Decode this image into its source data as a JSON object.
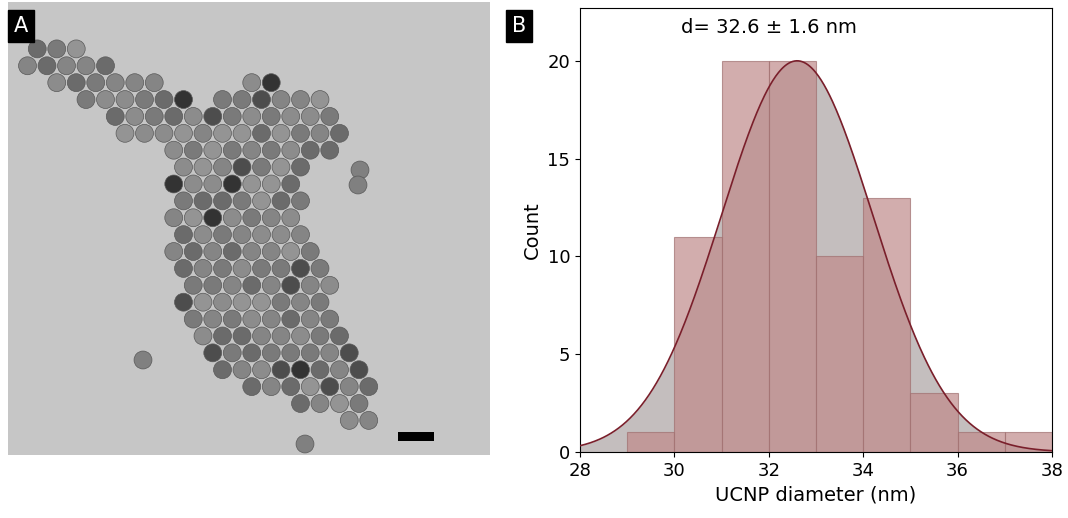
{
  "panel_labels": [
    "A",
    "B"
  ],
  "chart_data": {
    "type": "histogram",
    "annotation": "d= 32.6 ± 1.6 nm",
    "x_label": "UCNP diameter (nm)",
    "y_label": "Count",
    "bins": [
      29,
      30,
      31,
      32,
      33,
      34,
      35,
      36,
      37,
      38
    ],
    "counts": [
      1,
      11,
      20,
      20,
      10,
      13,
      3,
      1,
      1
    ],
    "color": "#c08a8a",
    "fit": {
      "mean": 32.6,
      "sd": 1.6,
      "peak": 20,
      "color": "#7a1f2b"
    },
    "xlim": [
      28,
      38
    ],
    "xticks": [
      28,
      30,
      32,
      34,
      36,
      38
    ],
    "ylim": [
      0,
      22.7
    ],
    "yticks": [
      0,
      5,
      10,
      15,
      20
    ],
    "grid": false
  }
}
